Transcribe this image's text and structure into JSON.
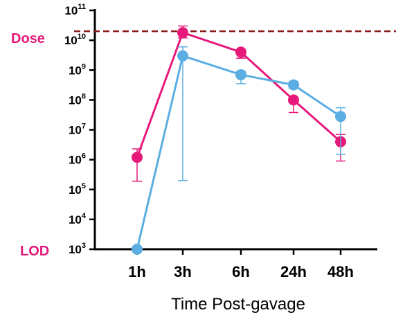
{
  "chart_data": {
    "type": "line",
    "xlabel": "Time Post-gavage",
    "ylabel": "",
    "yscale": "log",
    "ylim": [
      1000,
      100000000000
    ],
    "categories": [
      "1h",
      "3h",
      "6h",
      "24h",
      "48h"
    ],
    "y_tick_labels": [
      {
        "base": "10",
        "exp": "11"
      },
      {
        "base": "10",
        "exp": "10"
      },
      {
        "base": "10",
        "exp": "9"
      },
      {
        "base": "10",
        "exp": "8"
      },
      {
        "base": "10",
        "exp": "7"
      },
      {
        "base": "10",
        "exp": "6"
      },
      {
        "base": "10",
        "exp": "5"
      },
      {
        "base": "10",
        "exp": "4"
      },
      {
        "base": "10",
        "exp": "3"
      }
    ],
    "series": [
      {
        "color": "#e6197a",
        "values": [
          1200000,
          18000000000,
          4000000000,
          100000000,
          4000000
        ],
        "err_low": [
          190000,
          12000000000,
          2500000000,
          38000000,
          900000
        ],
        "err_high": [
          2300000,
          30000000000,
          4500000000,
          120000000,
          7000000
        ]
      },
      {
        "color": "#5aaee2",
        "values": [
          1000,
          3000000000,
          700000000,
          320000000,
          28000000
        ],
        "err_low": [
          null,
          200000,
          350000000,
          250000000,
          1500000
        ],
        "err_high": [
          null,
          6000000000,
          900000000,
          420000000,
          55000000
        ]
      }
    ],
    "reference_lines": [
      {
        "label": "Dose",
        "value": 20000000000,
        "color": "#8b1a1a",
        "style": "dashed",
        "label_color": "#e6197a"
      },
      {
        "label": "LOD",
        "value": 1000,
        "label_color": "#e6197a"
      }
    ],
    "grid": false,
    "legend": "none"
  }
}
